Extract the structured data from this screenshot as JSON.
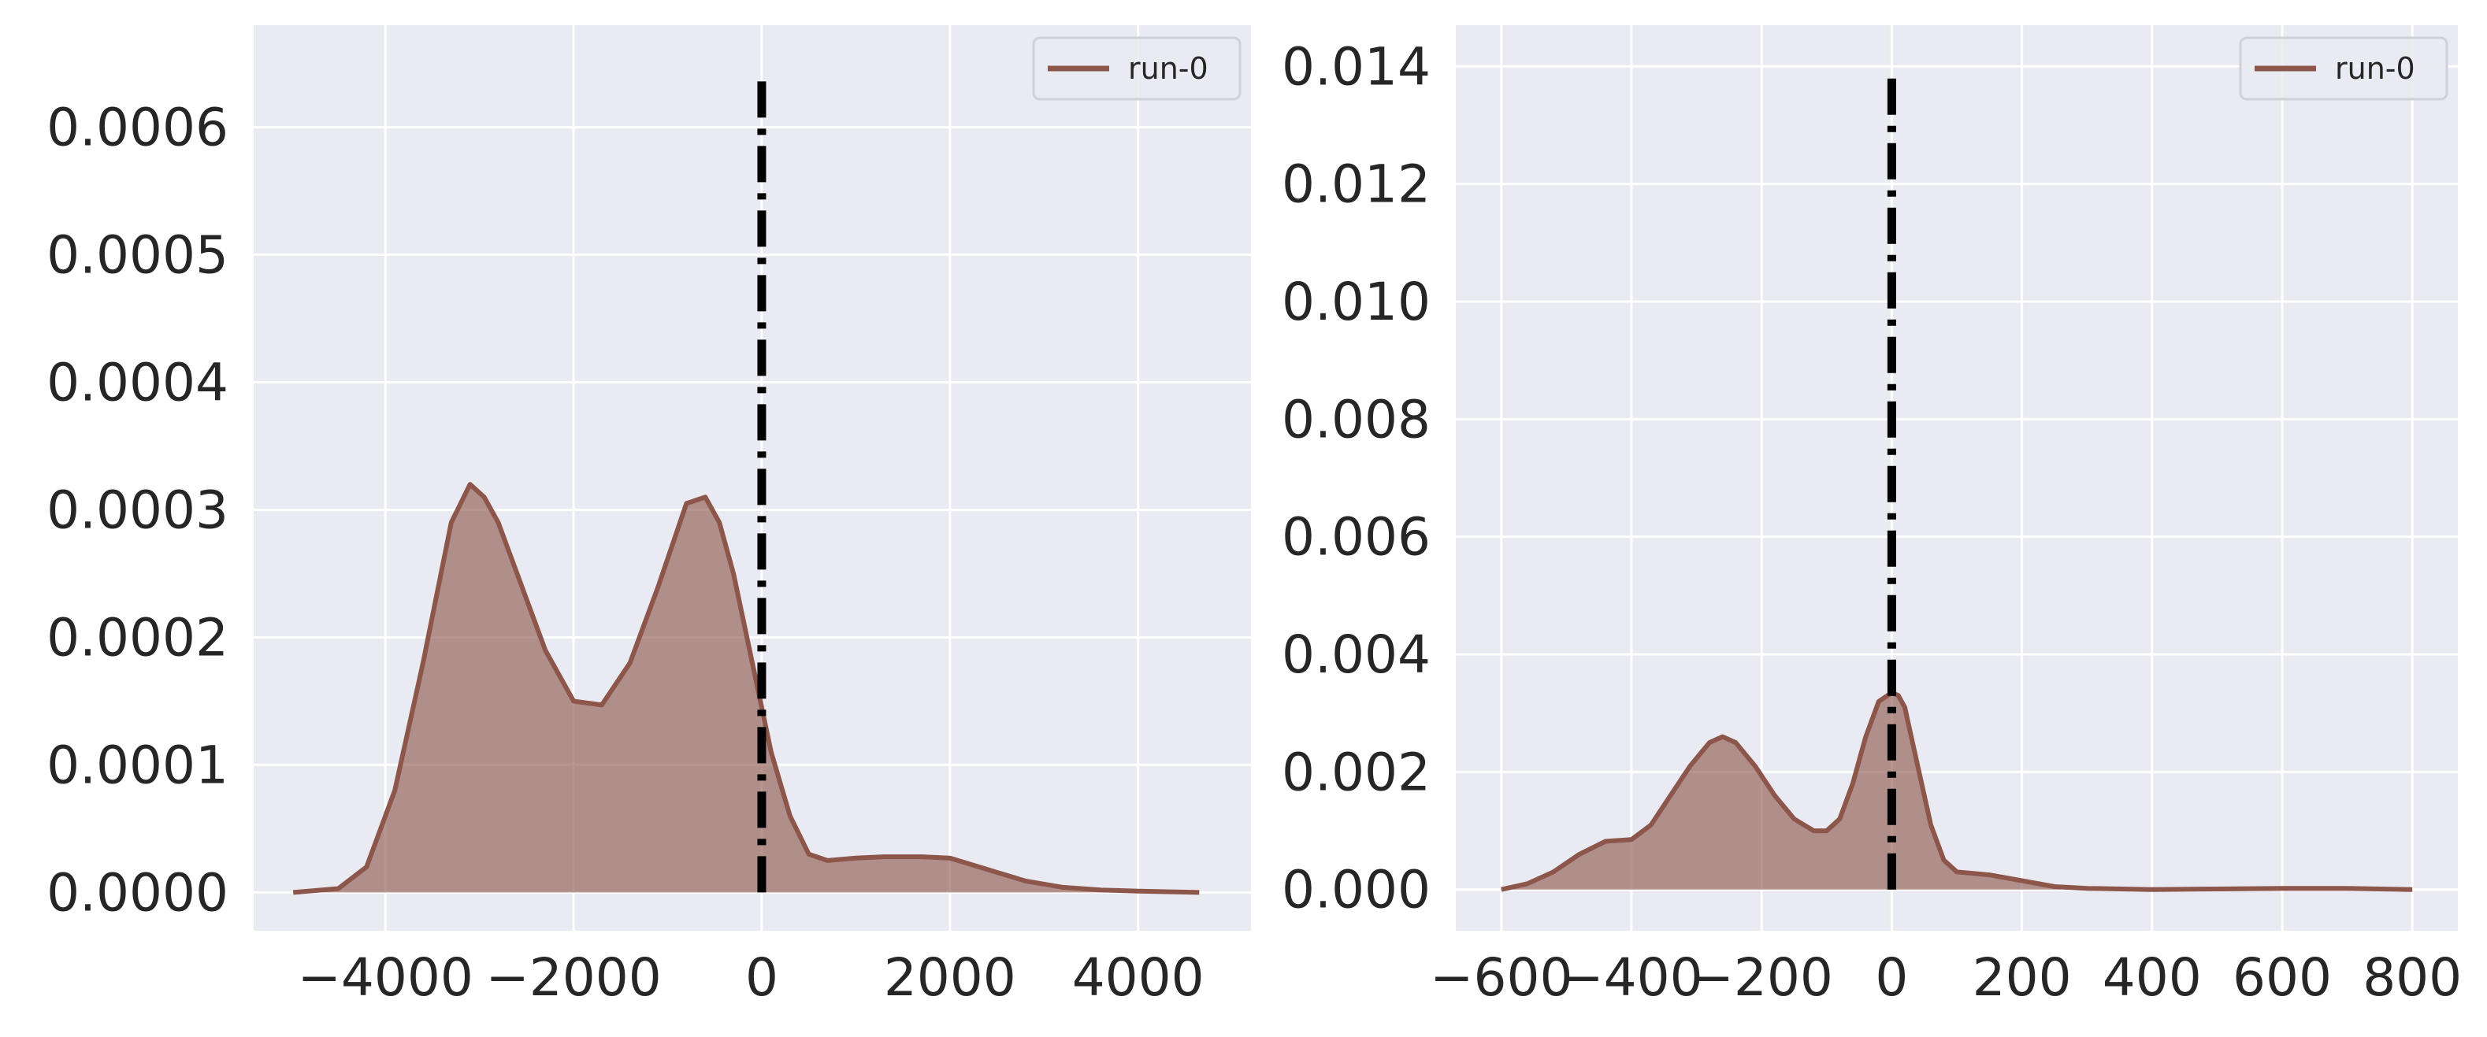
{
  "chart_data": [
    {
      "type": "area",
      "title": "",
      "xlabel": "",
      "ylabel": "",
      "xlim": [
        -5400,
        5200
      ],
      "ylim": [
        -3e-05,
        0.00068
      ],
      "xticks": [
        -4000,
        -2000,
        0,
        2000,
        4000
      ],
      "xtick_labels": [
        "−4000",
        "−2000",
        "0",
        "2000",
        "4000"
      ],
      "yticks": [
        0.0,
        0.0001,
        0.0002,
        0.0003,
        0.0004,
        0.0005,
        0.0006
      ],
      "ytick_labels": [
        "0.0000",
        "0.0001",
        "0.0002",
        "0.0003",
        "0.0004",
        "0.0005",
        "0.0006"
      ],
      "grid": true,
      "legend": {
        "placement": "top-right",
        "entries": [
          "run-0"
        ]
      },
      "series": [
        {
          "name": "run-0",
          "color": "#8c564b",
          "x": [
            -4980,
            -4500,
            -4200,
            -3900,
            -3600,
            -3300,
            -3100,
            -2950,
            -2800,
            -2600,
            -2300,
            -2000,
            -1700,
            -1400,
            -1100,
            -800,
            -600,
            -450,
            -300,
            -100,
            100,
            300,
            500,
            700,
            1000,
            1300,
            1700,
            2000,
            2400,
            2800,
            3200,
            3600,
            4000,
            4650
          ],
          "y": [
            0.0,
            3e-06,
            2e-05,
            8e-05,
            0.00018,
            0.00029,
            0.00032,
            0.00031,
            0.00029,
            0.00025,
            0.00019,
            0.00015,
            0.000147,
            0.00018,
            0.00024,
            0.000305,
            0.00031,
            0.00029,
            0.00025,
            0.00018,
            0.00011,
            6e-05,
            3e-05,
            2.5e-05,
            2.7e-05,
            2.8e-05,
            2.8e-05,
            2.7e-05,
            1.8e-05,
            9e-06,
            4e-06,
            2e-06,
            1e-06,
            0.0
          ]
        }
      ],
      "reference_lines": [
        {
          "orientation": "vertical",
          "x": 0,
          "y_range": [
            0.0,
            0.00064
          ],
          "style": "dashdot",
          "color": "#000000"
        }
      ]
    },
    {
      "type": "area",
      "title": "",
      "xlabel": "",
      "ylabel": "",
      "xlim": [
        -670,
        870
      ],
      "ylim": [
        -0.0007,
        0.0147
      ],
      "xticks": [
        -600,
        -400,
        -200,
        0,
        200,
        400,
        600,
        800
      ],
      "xtick_labels": [
        "−600",
        "−400",
        "−200",
        "0",
        "200",
        "400",
        "600",
        "800"
      ],
      "yticks": [
        0.0,
        0.002,
        0.004,
        0.006,
        0.008,
        0.01,
        0.012,
        0.014
      ],
      "ytick_labels": [
        "0.000",
        "0.002",
        "0.004",
        "0.006",
        "0.008",
        "0.010",
        "0.012",
        "0.014"
      ],
      "grid": true,
      "legend": {
        "placement": "top-right",
        "entries": [
          "run-0"
        ]
      },
      "series": [
        {
          "name": "run-0",
          "color": "#8c564b",
          "x": [
            -600,
            -560,
            -520,
            -480,
            -440,
            -400,
            -370,
            -340,
            -310,
            -280,
            -260,
            -240,
            -210,
            -180,
            -150,
            -120,
            -100,
            -80,
            -60,
            -40,
            -20,
            0,
            10,
            20,
            40,
            60,
            80,
            100,
            150,
            200,
            250,
            300,
            400,
            500,
            600,
            700,
            800
          ],
          "y": [
            0.0,
            0.0001,
            0.0003,
            0.0006,
            0.00082,
            0.00085,
            0.0011,
            0.0016,
            0.0021,
            0.0025,
            0.0026,
            0.0025,
            0.0021,
            0.0016,
            0.0012,
            0.001,
            0.001,
            0.0012,
            0.0018,
            0.0026,
            0.0032,
            0.00335,
            0.0033,
            0.0031,
            0.0021,
            0.0011,
            0.0005,
            0.0003,
            0.00025,
            0.00015,
            5e-05,
            2e-05,
            0.0,
            1e-05,
            2e-05,
            2e-05,
            0.0
          ]
        }
      ],
      "reference_lines": [
        {
          "orientation": "vertical",
          "x": 0,
          "y_range": [
            0.0,
            0.0139
          ],
          "style": "dashdot",
          "color": "#000000"
        }
      ]
    }
  ]
}
